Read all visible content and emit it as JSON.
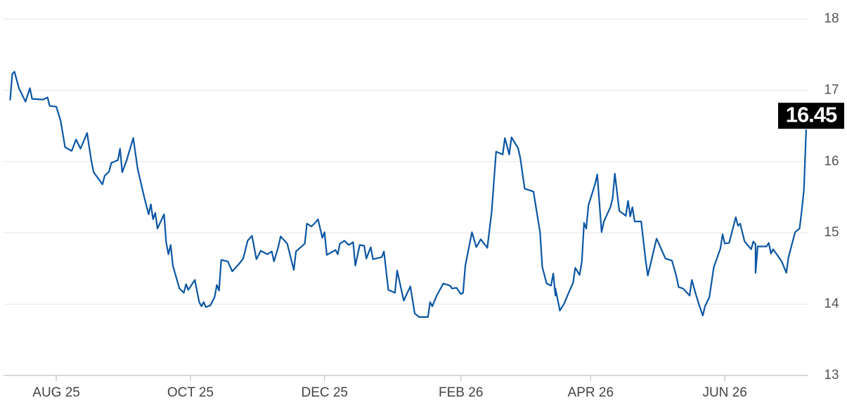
{
  "chart_data": {
    "type": "line",
    "color": "#0b56a4",
    "x": [
      -21,
      -20,
      -19,
      -17,
      -14,
      -12,
      -11,
      -6,
      -4,
      -3,
      0,
      2,
      4,
      7,
      9,
      11,
      14,
      16,
      17,
      21,
      22,
      24,
      25,
      28,
      29,
      30,
      32,
      35,
      37,
      40,
      42,
      43,
      44,
      45,
      46,
      49,
      50,
      51,
      52,
      53,
      56,
      58,
      59,
      60,
      63,
      65,
      66,
      67,
      68,
      70,
      72,
      73,
      74,
      75,
      78,
      80,
      83,
      85,
      87,
      89,
      91,
      93,
      96,
      98,
      99,
      101,
      102,
      105,
      108,
      109,
      113,
      114,
      116,
      118,
      119,
      121,
      122,
      123,
      127,
      128,
      129,
      131,
      133,
      135,
      136,
      138,
      140,
      141,
      143,
      144,
      148,
      149,
      151,
      154,
      155,
      158,
      161,
      163,
      165,
      169,
      170,
      171,
      173,
      176,
      179,
      180,
      182,
      184,
      185,
      186,
      189,
      191,
      193,
      196,
      198,
      200,
      203,
      204,
      206,
      207,
      210,
      211,
      213,
      217,
      220,
      221,
      223,
      225,
      226,
      227,
      227,
      229,
      231,
      233,
      235,
      236,
      238,
      239,
      240,
      241,
      242,
      245,
      246,
      248,
      249,
      252,
      253,
      254,
      256,
      259,
      260,
      261,
      262,
      263,
      266,
      268,
      269,
      273,
      275,
      277,
      280,
      282,
      283,
      285,
      288,
      289,
      291,
      292,
      294,
      295,
      297,
      299,
      302,
      303,
      304,
      306,
      309,
      310,
      311,
      313,
      316,
      317,
      318,
      318,
      319,
      323,
      324,
      325,
      326,
      329,
      330,
      332,
      333,
      336,
      338,
      339,
      340,
      341
    ],
    "values": [
      16.86,
      17.23,
      17.26,
      17.03,
      16.84,
      17.03,
      16.88,
      16.87,
      16.9,
      16.78,
      16.77,
      16.57,
      16.2,
      16.15,
      16.31,
      16.18,
      16.4,
      16.0,
      15.85,
      15.68,
      15.8,
      15.86,
      15.98,
      16.02,
      16.18,
      15.85,
      16.02,
      16.33,
      15.9,
      15.5,
      15.26,
      15.4,
      15.19,
      15.28,
      15.06,
      15.26,
      14.86,
      14.7,
      14.83,
      14.54,
      14.22,
      14.16,
      14.28,
      14.2,
      14.34,
      14.03,
      13.97,
      14.03,
      13.96,
      13.98,
      14.1,
      14.27,
      14.19,
      14.62,
      14.6,
      14.46,
      14.56,
      14.64,
      14.89,
      14.96,
      14.63,
      14.75,
      14.7,
      14.74,
      14.6,
      14.81,
      14.95,
      14.85,
      14.48,
      14.74,
      14.85,
      15.13,
      15.09,
      15.15,
      15.19,
      14.93,
      15.01,
      14.69,
      14.76,
      14.7,
      14.85,
      14.89,
      14.83,
      14.87,
      14.54,
      14.83,
      14.82,
      14.64,
      14.8,
      14.63,
      14.66,
      14.74,
      14.2,
      14.16,
      14.47,
      14.05,
      14.25,
      13.87,
      13.82,
      13.82,
      14.03,
      13.97,
      14.12,
      14.29,
      14.26,
      14.22,
      14.23,
      14.14,
      14.16,
      14.54,
      15.01,
      14.8,
      14.91,
      14.79,
      15.3,
      16.14,
      16.1,
      16.33,
      16.1,
      16.34,
      16.19,
      16.05,
      15.62,
      15.58,
      15.01,
      14.52,
      14.29,
      14.26,
      14.43,
      14.12,
      14.22,
      13.91,
      14.01,
      14.16,
      14.3,
      14.51,
      14.41,
      14.6,
      15.14,
      15.06,
      15.39,
      15.68,
      15.82,
      15.01,
      15.16,
      15.36,
      15.49,
      15.83,
      15.31,
      15.24,
      15.45,
      15.23,
      15.36,
      15.16,
      15.16,
      14.62,
      14.4,
      14.92,
      14.78,
      14.64,
      14.61,
      14.39,
      14.24,
      14.22,
      14.12,
      14.34,
      14.12,
      14.02,
      13.84,
      13.97,
      14.1,
      14.52,
      14.78,
      14.98,
      14.85,
      14.86,
      15.22,
      15.1,
      15.13,
      14.88,
      14.77,
      14.88,
      14.84,
      14.44,
      14.81,
      14.81,
      14.86,
      14.71,
      14.77,
      14.64,
      14.59,
      14.44,
      14.66,
      15.01,
      15.06,
      15.31,
      15.6,
      16.45
    ],
    "xlim": [
      -24,
      342
    ],
    "xticks": [
      {
        "value": 0,
        "label": "AUG 25"
      },
      {
        "value": 61,
        "label": "OCT 25"
      },
      {
        "value": 122,
        "label": "DEC 25"
      },
      {
        "value": 184,
        "label": "FEB 26"
      },
      {
        "value": 243,
        "label": "APR 26"
      },
      {
        "value": 304,
        "label": "JUN 26"
      }
    ],
    "ylim": [
      13,
      18
    ],
    "yticks": [
      13,
      14,
      15,
      16,
      17,
      18
    ],
    "grid": true
  }
}
